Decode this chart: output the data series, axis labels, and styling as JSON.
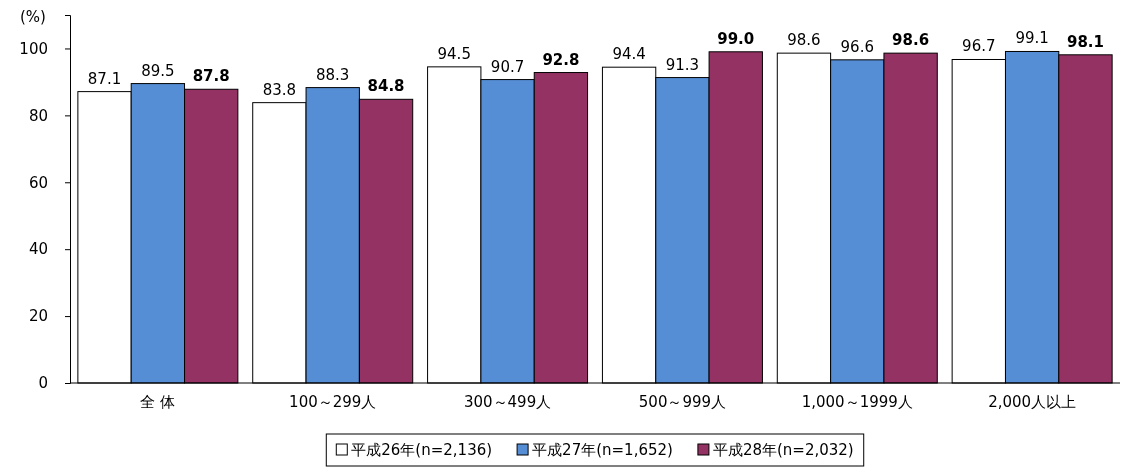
{
  "chart_data": {
    "type": "bar",
    "ylabel": "(%)",
    "categories": [
      "全 体",
      "100～299人",
      "300～499人",
      "500～999人",
      "1,000～1999人",
      "2,000人以上"
    ],
    "series": [
      {
        "name": "平成26年(n=2,136)",
        "color": "#ffffff",
        "values": [
          87.1,
          83.8,
          94.5,
          94.4,
          98.6,
          96.7
        ],
        "value_labels": [
          "87.1",
          "83.8",
          "94.5",
          "94.4",
          "98.6",
          "96.7"
        ]
      },
      {
        "name": "平成27年(n=1,652)",
        "color": "#558ed5",
        "values": [
          89.5,
          88.3,
          90.7,
          91.3,
          96.6,
          99.1
        ],
        "value_labels": [
          "89.5",
          "88.3",
          "90.7",
          "91.3",
          "96.6",
          "99.1"
        ]
      },
      {
        "name": "平成28年(n=2,032)",
        "color": "#953264",
        "values": [
          87.8,
          84.8,
          92.8,
          99.0,
          98.6,
          98.1
        ],
        "value_labels": [
          "87.8",
          "84.8",
          "92.8",
          "99.0",
          "98.6",
          "98.1"
        ]
      }
    ],
    "ylim": [
      0,
      110
    ],
    "yticks": [
      0,
      20,
      40,
      60,
      80,
      100
    ],
    "legend": "bottom",
    "grid": false
  }
}
